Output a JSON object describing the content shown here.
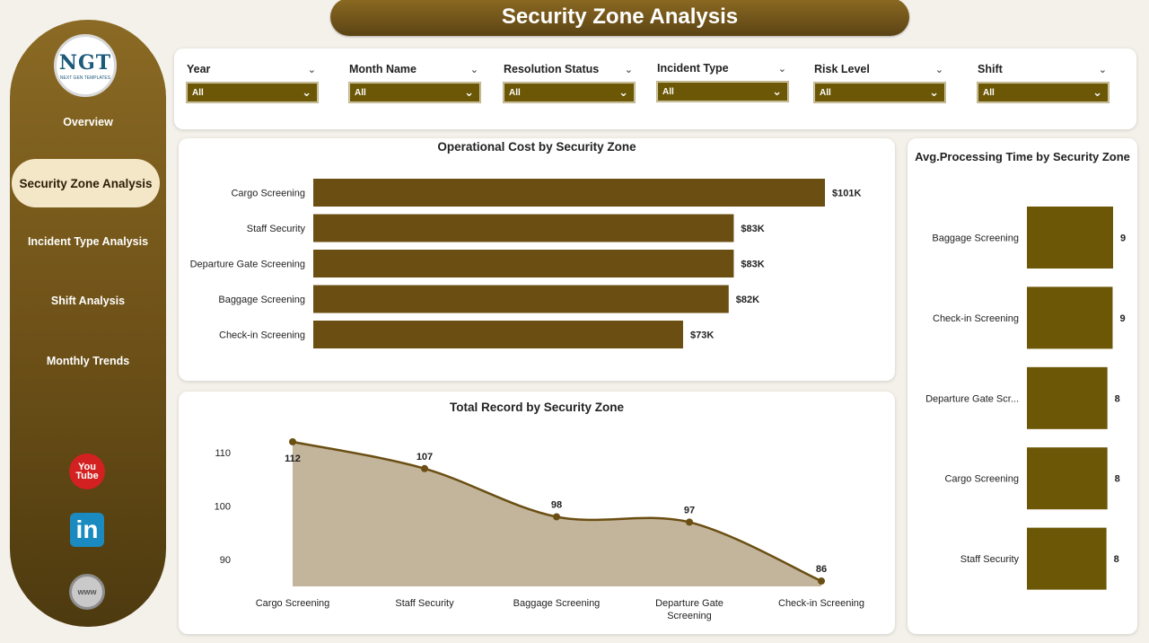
{
  "title": "Security Zone Analysis",
  "logo": {
    "text": "NGT",
    "subtext": "NEXT GEN TEMPLATES"
  },
  "nav": {
    "items": [
      {
        "label": "Overview",
        "active": false
      },
      {
        "label": "Security Zone Analysis",
        "active": true
      },
      {
        "label": "Incident Type Analysis",
        "active": false
      },
      {
        "label": "Shift Analysis",
        "active": false
      },
      {
        "label": "Monthly Trends",
        "active": false
      }
    ]
  },
  "social": {
    "youtube": "You Tube",
    "linkedin": "in",
    "web": "www"
  },
  "filters": [
    {
      "label": "Year",
      "value": "All"
    },
    {
      "label": "Month Name",
      "value": "All"
    },
    {
      "label": "Resolution Status",
      "value": "All"
    },
    {
      "label": "Incident Type",
      "value": "All"
    },
    {
      "label": "Risk Level",
      "value": "All"
    },
    {
      "label": "Shift",
      "value": "All"
    }
  ],
  "colors": {
    "bar": "#6b4e12",
    "area_fill": "#c2b59c",
    "area_line": "#6b4e12",
    "avg_bar": "#6b5706"
  },
  "chart_data": [
    {
      "type": "bar",
      "orientation": "horizontal",
      "title": "Operational Cost by Security Zone",
      "categories": [
        "Cargo Screening",
        "Staff Security",
        "Departure Gate Screening",
        "Baggage Screening",
        "Check-in Screening"
      ],
      "values": [
        101,
        83,
        83,
        82,
        73
      ],
      "labels": [
        "$101K",
        "$83K",
        "$83K",
        "$82K",
        "$73K"
      ],
      "xlim": [
        0,
        101
      ]
    },
    {
      "type": "area",
      "title": "Total Record by Security Zone",
      "categories": [
        "Cargo Screening",
        "Staff Security",
        "Baggage Screening",
        "Departure Gate Screening",
        "Check-in Screening"
      ],
      "category_labels": [
        [
          "Cargo Screening"
        ],
        [
          "Staff Security"
        ],
        [
          "Baggage Screening"
        ],
        [
          "Departure Gate",
          "Screening"
        ],
        [
          "Check-in Screening"
        ]
      ],
      "values": [
        112,
        107,
        98,
        97,
        86
      ],
      "yticks": [
        110,
        100,
        90
      ],
      "ylim": [
        85,
        113
      ]
    },
    {
      "type": "bar",
      "orientation": "vertical",
      "title": "Avg.Processing Time by Security Zone",
      "categories": [
        "Baggage Screening",
        "Check-in Screening",
        "Departure Gate Scr...",
        "Cargo Screening",
        "Staff Security"
      ],
      "values": [
        9.1,
        9.05,
        8.5,
        8.5,
        8.4
      ],
      "labels": [
        "9",
        "9",
        "8",
        "8",
        "8"
      ]
    }
  ]
}
